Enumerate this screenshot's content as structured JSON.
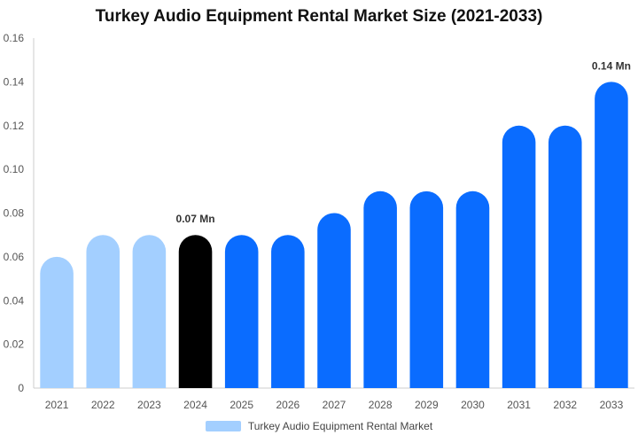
{
  "chart_data": {
    "type": "bar",
    "title": "Turkey Audio Equipment Rental Market Size (2021-2033)",
    "xlabel": "",
    "ylabel": "",
    "categories": [
      "2021",
      "2022",
      "2023",
      "2024",
      "2025",
      "2026",
      "2027",
      "2028",
      "2029",
      "2030",
      "2031",
      "2032",
      "2033"
    ],
    "series": [
      {
        "name": "Turkey Audio Equipment Rental Market",
        "values": [
          0.06,
          0.07,
          0.07,
          0.07,
          0.07,
          0.07,
          0.08,
          0.09,
          0.09,
          0.09,
          0.12,
          0.12,
          0.14
        ]
      }
    ],
    "ylim": [
      0,
      0.16
    ],
    "yticks": [
      "0",
      "0.02",
      "0.04",
      "0.06",
      "0.08",
      "0.10",
      "0.12",
      "0.14",
      "0.16"
    ],
    "data_labels": [
      {
        "category": "2024",
        "text": "0.07 Mn"
      },
      {
        "category": "2033",
        "text": "0.14 Mn"
      }
    ],
    "bar_colors": {
      "historical": "#a3cfff",
      "base_year": "#000000",
      "forecast": "#0a6cff"
    },
    "historical_years": [
      "2021",
      "2022",
      "2023"
    ],
    "base_year": "2024",
    "legend_position": "bottom-center",
    "grid": false
  }
}
